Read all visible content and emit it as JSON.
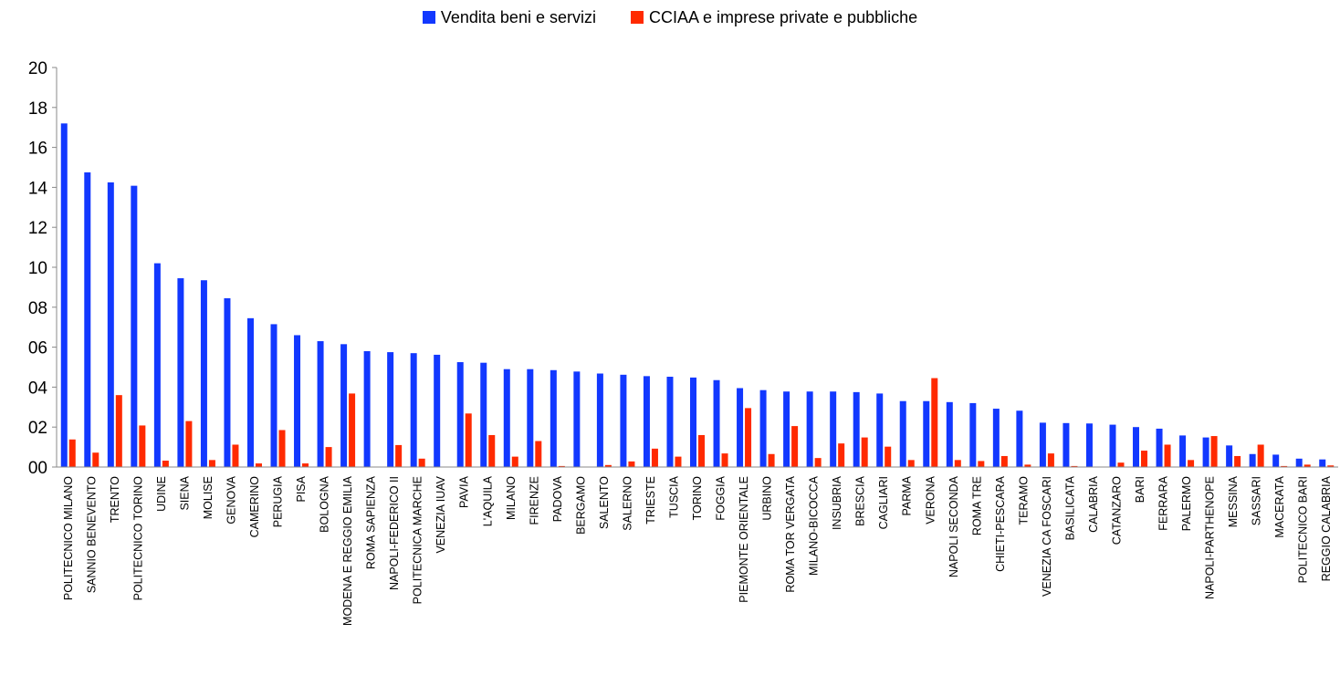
{
  "chart_data": {
    "type": "bar",
    "title": "",
    "xlabel": "",
    "ylabel": "",
    "ylim": [
      0,
      20
    ],
    "y_ticks": [
      "00",
      "02",
      "04",
      "06",
      "08",
      "10",
      "12",
      "14",
      "16",
      "18",
      "20"
    ],
    "grid": false,
    "legend_position": "top-center",
    "categories": [
      "POLITECNICO MILANO",
      "SANNIO BENEVENTO",
      "TRENTO",
      "POLITECNICO TORINO",
      "UDINE",
      "SIENA",
      "MOLISE",
      "GENOVA",
      "CAMERINO",
      "PERUGIA",
      "PISA",
      "BOLOGNA",
      "MODENA E REGGIO EMILIA",
      "ROMA SAPIENZA",
      "NAPOLI-FEDERICO II",
      "POLITECNICA MARCHE",
      "VENEZIA IUAV",
      "PAVIA",
      "L'AQUILA",
      "MILANO",
      "FIRENZE",
      "PADOVA",
      "BERGAMO",
      "SALENTO",
      "SALERNO",
      "TRIESTE",
      "TUSCIA",
      "TORINO",
      "FOGGIA",
      "PIEMONTE ORIENTALE",
      "URBINO",
      "ROMA TOR VERGATA",
      "MILANO-BICOCCA",
      "INSUBRIA",
      "BRESCIA",
      "CAGLIARI",
      "PARMA",
      "VERONA",
      "NAPOLI SECONDA",
      "ROMA TRE",
      "CHIETI-PESCARA",
      "TERAMO",
      "VENEZIA CA FOSCARI",
      "BASILICATA",
      "CALABRIA",
      "CATANZARO",
      "BARI",
      "FERRARA",
      "PALERMO",
      "NAPOLI-PARTHENOPE",
      "MESSINA",
      "SASSARI",
      "MACERATA",
      "POLITECNICO BARI",
      "REGGIO CALABRIA"
    ],
    "series": [
      {
        "name": "Vendita beni e servizi",
        "color": "#1238FF",
        "values": [
          17.2,
          14.75,
          14.25,
          14.08,
          10.2,
          9.45,
          9.35,
          8.45,
          7.45,
          7.15,
          6.6,
          6.3,
          6.15,
          5.8,
          5.75,
          5.7,
          5.62,
          5.25,
          5.22,
          4.9,
          4.9,
          4.85,
          4.78,
          4.68,
          4.62,
          4.55,
          4.52,
          4.48,
          4.35,
          3.95,
          3.85,
          3.78,
          3.78,
          3.78,
          3.75,
          3.68,
          3.3,
          3.3,
          3.25,
          3.2,
          2.92,
          2.82,
          2.22,
          2.2,
          2.18,
          2.12,
          2.0,
          1.92,
          1.58,
          1.48,
          1.08,
          0.65,
          0.62,
          0.42,
          0.38
        ]
      },
      {
        "name": "CCIAA e imprese private e pubbliche",
        "color": "#FF2A00",
        "values": [
          1.38,
          0.72,
          3.6,
          2.08,
          0.32,
          2.3,
          0.35,
          1.12,
          0.18,
          1.85,
          0.18,
          1.0,
          3.68,
          0.0,
          1.1,
          0.42,
          0.0,
          2.68,
          1.6,
          0.52,
          1.3,
          0.05,
          0.0,
          0.1,
          0.28,
          0.92,
          0.52,
          1.6,
          0.68,
          2.95,
          0.65,
          2.05,
          0.45,
          1.18,
          1.48,
          1.02,
          0.35,
          4.45,
          0.35,
          0.3,
          0.55,
          0.12,
          0.68,
          0.05,
          0.0,
          0.22,
          0.82,
          1.12,
          0.35,
          1.55,
          0.55,
          1.12,
          0.05,
          0.12,
          0.08
        ]
      }
    ]
  }
}
